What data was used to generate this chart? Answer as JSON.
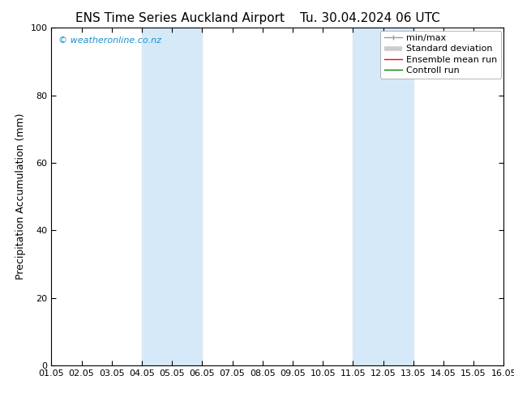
{
  "title_left": "ENS Time Series Auckland Airport",
  "title_right": "Tu. 30.04.2024 06 UTC",
  "ylabel": "Precipitation Accumulation (mm)",
  "xlim": [
    1.0,
    16.0
  ],
  "ylim": [
    0,
    100
  ],
  "yticks": [
    0,
    20,
    40,
    60,
    80,
    100
  ],
  "xtick_labels": [
    "01.05",
    "02.05",
    "03.05",
    "04.05",
    "05.05",
    "06.05",
    "07.05",
    "08.05",
    "09.05",
    "10.05",
    "11.05",
    "12.05",
    "13.05",
    "14.05",
    "15.05",
    "16.05"
  ],
  "xtick_positions": [
    1,
    2,
    3,
    4,
    5,
    6,
    7,
    8,
    9,
    10,
    11,
    12,
    13,
    14,
    15,
    16
  ],
  "shaded_regions": [
    {
      "x_start": 4.0,
      "x_end": 6.0
    },
    {
      "x_start": 11.0,
      "x_end": 13.0
    }
  ],
  "shaded_color": "#d6e9f8",
  "background_color": "#ffffff",
  "watermark_text": "© weatheronline.co.nz",
  "watermark_color": "#1a8fcc",
  "legend_entries": [
    {
      "label": "min/max",
      "color": "#999999",
      "lw": 1.0,
      "linestyle": "-"
    },
    {
      "label": "Standard deviation",
      "color": "#cccccc",
      "lw": 4.0,
      "linestyle": "-"
    },
    {
      "label": "Ensemble mean run",
      "color": "#ff0000",
      "lw": 1.0,
      "linestyle": "-"
    },
    {
      "label": "Controll run",
      "color": "#008000",
      "lw": 1.0,
      "linestyle": "-"
    }
  ],
  "title_fontsize": 11,
  "axis_label_fontsize": 9,
  "tick_fontsize": 8,
  "legend_fontsize": 8,
  "watermark_fontsize": 8
}
